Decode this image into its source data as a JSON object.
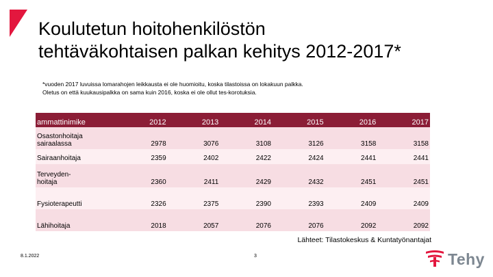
{
  "title_lines": [
    "Koulutetun hoitohenkilöstön",
    "tehtäväkohtaisen palkan kehitys 2012-2017*"
  ],
  "note_lines": [
    "*vuoden 2017 luvuissa lomarahojen leikkausta ei ole huomioitu, koska tilastoissa on lokakuun palkka.",
    "Oletus on että kuukausipalkka on sama kuin 2016, koska ei ole ollut tes-korotuksia."
  ],
  "table": {
    "headers": [
      "ammattinimike",
      "2012",
      "2013",
      "2014",
      "2015",
      "2016",
      "2017"
    ],
    "rows": [
      {
        "name_lines": [
          "Osastonhoitaja",
          "sairaalassa"
        ],
        "values": [
          "2978",
          "3076",
          "3108",
          "3126",
          "3158",
          "3158"
        ]
      },
      {
        "name_lines": [
          "Sairaanhoitaja"
        ],
        "values": [
          "2359",
          "2402",
          "2422",
          "2424",
          "2441",
          "2441"
        ]
      },
      {
        "name_lines": [
          "Terveyden-",
          "hoitaja"
        ],
        "values": [
          "2360",
          "2411",
          "2429",
          "2432",
          "2451",
          "2451"
        ]
      },
      {
        "name_lines": [
          "Fysioterapeutti"
        ],
        "values": [
          "2326",
          "2375",
          "2390",
          "2393",
          "2409",
          "2409"
        ]
      },
      {
        "name_lines": [
          "Lähihoitaja"
        ],
        "values": [
          "2018",
          "2057",
          "2076",
          "2076",
          "2092",
          "2092"
        ]
      }
    ]
  },
  "sources": "Lähteet: Tilastokeskus & Kuntatyönantajat",
  "footer": {
    "date": "8.1.2022",
    "page": "3"
  },
  "logo": {
    "text": "Tehy",
    "icon": "tehy-logo-icon"
  },
  "colors": {
    "header_bg": "#8b1d36",
    "row_odd": "#f7dde3",
    "row_even": "#fdeff2",
    "accent": "#e3173e",
    "logo_gray": "#7d8791"
  }
}
